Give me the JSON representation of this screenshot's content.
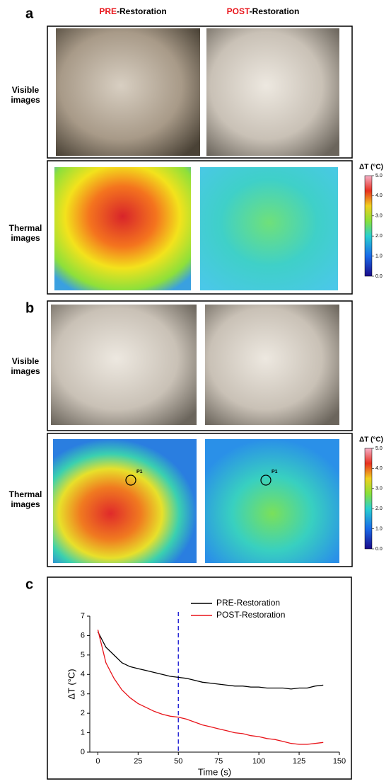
{
  "panel_a": {
    "label": "a",
    "header_pre": {
      "highlight": "PRE",
      "rest": "-Restoration"
    },
    "header_post": {
      "highlight": "POST",
      "rest": "-Restoration"
    },
    "row_visible": [
      "Visible",
      "images"
    ],
    "row_thermal": [
      "Thermal",
      "images"
    ],
    "colorbar": {
      "label": "ΔT (°C)",
      "lim": [
        0,
        5
      ],
      "ticks": [
        {
          "value": 0,
          "label": "0.0"
        },
        {
          "value": 1,
          "label": "1.0"
        },
        {
          "value": 2,
          "label": "2.0"
        },
        {
          "value": 3,
          "label": "3.0"
        },
        {
          "value": 4,
          "label": "4.0"
        },
        {
          "value": 5,
          "label": "5.0"
        }
      ]
    }
  },
  "panel_b": {
    "label": "b",
    "row_visible": [
      "Visible",
      "images"
    ],
    "row_thermal": [
      "Thermal",
      "images"
    ],
    "points": [
      "P1",
      "P1"
    ],
    "colorbar": {
      "label": "ΔT (°C)",
      "lim": [
        0,
        5
      ],
      "ticks": [
        {
          "value": 0,
          "label": "0.0"
        },
        {
          "value": 1,
          "label": "1.0"
        },
        {
          "value": 2,
          "label": "2.0"
        },
        {
          "value": 3,
          "label": "3.0"
        },
        {
          "value": 4,
          "label": "4.0"
        },
        {
          "value": 5,
          "label": "5.0"
        }
      ]
    }
  },
  "chart_data": {
    "type": "line",
    "label": "c",
    "x_label": "Time (s)",
    "y_label": "ΔT (°C)",
    "x": [
      0,
      5,
      10,
      15,
      20,
      25,
      30,
      35,
      40,
      45,
      50,
      55,
      60,
      65,
      70,
      75,
      80,
      85,
      90,
      95,
      100,
      105,
      110,
      115,
      120,
      125,
      130,
      135,
      140
    ],
    "series": [
      {
        "name": "PRE-Restoration",
        "color": "#000000",
        "values": [
          6.2,
          5.4,
          5.0,
          4.6,
          4.4,
          4.3,
          4.2,
          4.1,
          4.0,
          3.9,
          3.85,
          3.8,
          3.7,
          3.6,
          3.55,
          3.5,
          3.45,
          3.4,
          3.4,
          3.35,
          3.35,
          3.3,
          3.3,
          3.3,
          3.25,
          3.3,
          3.3,
          3.4,
          3.45
        ]
      },
      {
        "name": "POST-Restoration",
        "color": "#e8141a",
        "values": [
          6.3,
          4.6,
          3.8,
          3.2,
          2.8,
          2.5,
          2.3,
          2.1,
          1.95,
          1.85,
          1.8,
          1.7,
          1.55,
          1.4,
          1.3,
          1.2,
          1.1,
          1.0,
          0.95,
          0.85,
          0.8,
          0.7,
          0.65,
          0.55,
          0.45,
          0.4,
          0.4,
          0.45,
          0.5
        ]
      }
    ],
    "vline": {
      "x": 50,
      "color": "#2b2bd6"
    },
    "xlim": [
      -5,
      150
    ],
    "xticks": [
      0,
      25,
      50,
      75,
      100,
      125,
      150
    ],
    "ylim": [
      0,
      7
    ],
    "yticks": [
      0,
      1,
      2,
      3,
      4,
      5,
      6,
      7
    ]
  }
}
